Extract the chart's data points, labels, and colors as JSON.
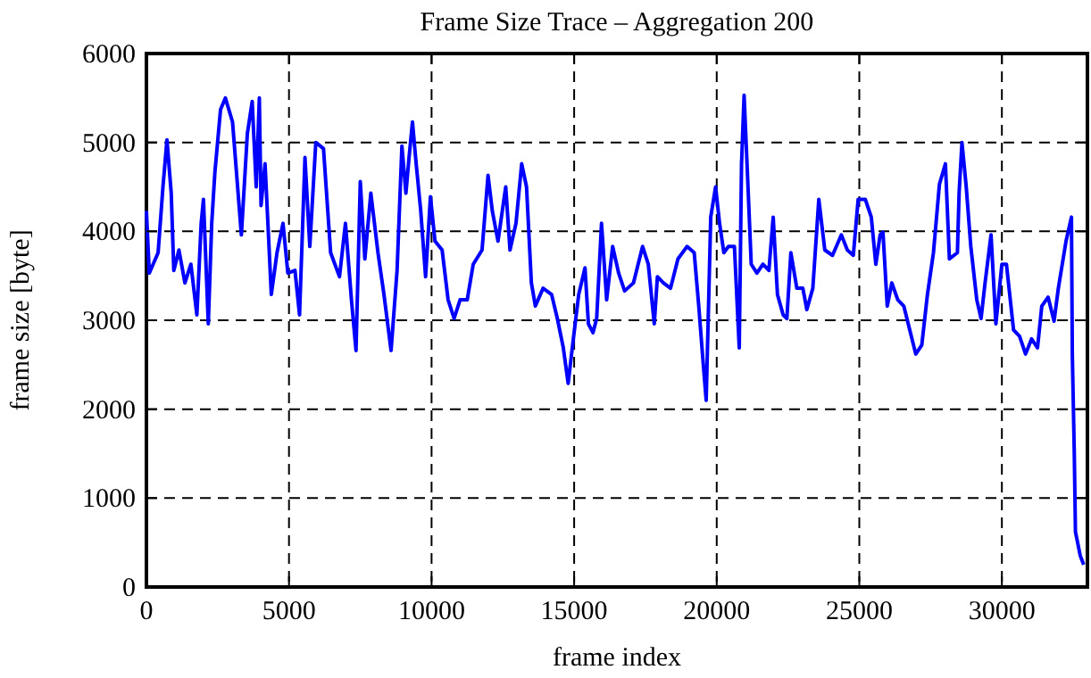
{
  "chart_data": {
    "type": "line",
    "title": "Frame Size Trace – Aggregation 200",
    "xlabel": "frame index",
    "ylabel": "frame size [byte]",
    "xlim": [
      0,
      33000
    ],
    "ylim": [
      0,
      6000
    ],
    "xticks": [
      0,
      5000,
      10000,
      15000,
      20000,
      25000,
      30000
    ],
    "yticks": [
      0,
      1000,
      2000,
      3000,
      4000,
      5000,
      6000
    ],
    "grid": true,
    "line_style": "solid",
    "series": [
      {
        "color": "#0000ff",
        "x": [
          0,
          100,
          410,
          580,
          720,
          870,
          960,
          1140,
          1350,
          1560,
          1770,
          1920,
          2000,
          2170,
          2290,
          2400,
          2600,
          2770,
          3020,
          3330,
          3540,
          3710,
          3850,
          3960,
          4020,
          4160,
          4380,
          4580,
          4790,
          4960,
          5210,
          5370,
          5560,
          5730,
          5940,
          6210,
          6460,
          6770,
          6980,
          7190,
          7350,
          7500,
          7660,
          7870,
          8120,
          8330,
          8580,
          8790,
          8960,
          9100,
          9210,
          9330,
          9460,
          9620,
          9790,
          9960,
          10120,
          10370,
          10580,
          10790,
          11000,
          11250,
          11460,
          11770,
          11980,
          12130,
          12330,
          12600,
          12750,
          12960,
          13160,
          13330,
          13500,
          13640,
          13910,
          14210,
          14410,
          14620,
          14790,
          14960,
          15160,
          15380,
          15500,
          15660,
          15790,
          15960,
          16140,
          16350,
          16560,
          16770,
          17080,
          17400,
          17600,
          17810,
          17920,
          18130,
          18380,
          18640,
          18960,
          19210,
          19370,
          19500,
          19630,
          19790,
          19960,
          20100,
          20250,
          20410,
          20620,
          20790,
          20870,
          20960,
          21080,
          21210,
          21410,
          21620,
          21830,
          21980,
          22130,
          22330,
          22460,
          22600,
          22810,
          23020,
          23160,
          23370,
          23580,
          23790,
          24060,
          24370,
          24580,
          24790,
          24960,
          25210,
          25420,
          25580,
          25730,
          25830,
          25980,
          26140,
          26350,
          26560,
          26770,
          26980,
          27190,
          27390,
          27600,
          27810,
          28020,
          28160,
          28440,
          28500,
          28600,
          28750,
          28910,
          29120,
          29270,
          29410,
          29620,
          29790,
          30000,
          30160,
          30410,
          30620,
          30830,
          31040,
          31250,
          31400,
          31620,
          31830,
          31980,
          32250,
          32440,
          32470,
          32540,
          32580,
          32750,
          32870
        ],
        "values": [
          4230,
          3530,
          3760,
          4500,
          5030,
          4430,
          3560,
          3790,
          3420,
          3630,
          3060,
          4090,
          4360,
          2960,
          4090,
          4660,
          5370,
          5500,
          5230,
          3960,
          5100,
          5460,
          4500,
          5500,
          4290,
          4760,
          3290,
          3760,
          4090,
          3530,
          3560,
          3060,
          4830,
          3830,
          5000,
          4930,
          3760,
          3490,
          4090,
          3230,
          2660,
          4560,
          3690,
          4430,
          3760,
          3290,
          2660,
          3560,
          4960,
          4430,
          4830,
          5230,
          4760,
          4230,
          3490,
          4390,
          3890,
          3790,
          3230,
          3020,
          3230,
          3230,
          3630,
          3790,
          4630,
          4230,
          3890,
          4500,
          3790,
          4090,
          4760,
          4500,
          3420,
          3160,
          3360,
          3290,
          3020,
          2690,
          2290,
          2760,
          3290,
          3590,
          2960,
          2860,
          3020,
          4090,
          3230,
          3830,
          3530,
          3330,
          3420,
          3830,
          3630,
          2960,
          3490,
          3420,
          3360,
          3690,
          3830,
          3760,
          3160,
          2620,
          2100,
          4160,
          4500,
          4090,
          3760,
          3830,
          3830,
          2690,
          4760,
          5530,
          4630,
          3630,
          3530,
          3630,
          3560,
          4160,
          3290,
          3060,
          3020,
          3760,
          3360,
          3360,
          3120,
          3360,
          4360,
          3790,
          3730,
          3960,
          3790,
          3730,
          4360,
          4360,
          4160,
          3630,
          3960,
          3990,
          3160,
          3420,
          3230,
          3160,
          2890,
          2620,
          2720,
          3290,
          3760,
          4530,
          4760,
          3690,
          3760,
          4430,
          5000,
          4500,
          3830,
          3230,
          3020,
          3420,
          3960,
          2960,
          3630,
          3630,
          2890,
          2820,
          2620,
          2790,
          2690,
          3160,
          3260,
          2990,
          3360,
          3890,
          4160,
          2620,
          1490,
          620,
          350,
          250
        ]
      }
    ]
  }
}
